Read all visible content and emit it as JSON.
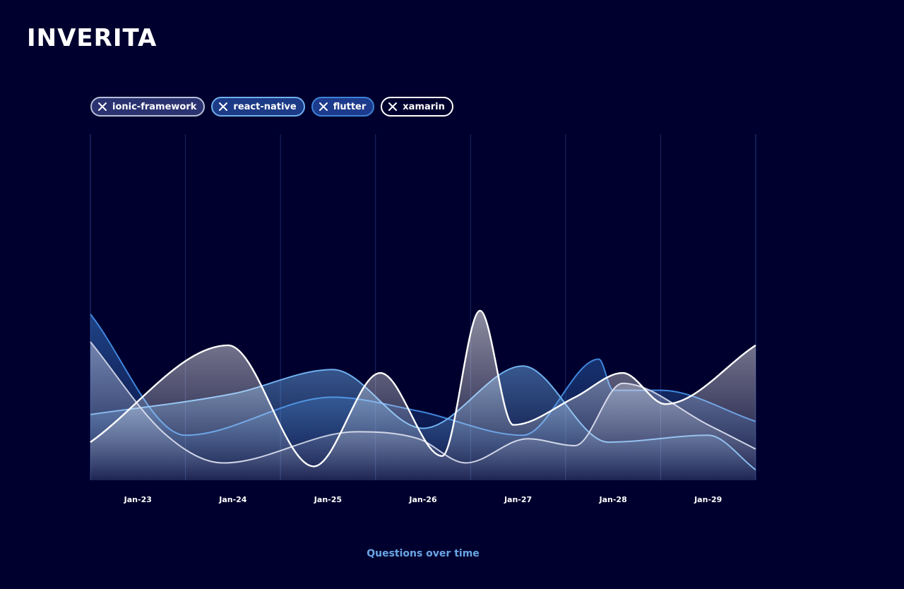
{
  "logo": {
    "text": "INVERITA"
  },
  "filters": [
    {
      "label": "ionic-framework",
      "color": "#b8bfd8",
      "bg": "#2a3270"
    },
    {
      "label": "react-native",
      "color": "#6fb0ee",
      "bg": "#1c3a86"
    },
    {
      "label": "flutter",
      "color": "#3e82d8",
      "bg": "#1d3b8c"
    },
    {
      "label": "xamarin",
      "color": "#ffffff",
      "bg": "#00002e"
    }
  ],
  "chart_data": {
    "type": "area",
    "categories": [
      "Jan-23",
      "Jan-24",
      "Jan-25",
      "Jan-26",
      "Jan-27",
      "Jan-28",
      "Jan-29"
    ],
    "xlabel": "Questions over time",
    "ylim": [
      0,
      100
    ],
    "grid": true,
    "series": [
      {
        "name": "flutter",
        "color": "#3f86dc",
        "x": [
          0,
          1,
          2.55,
          3.45,
          4.55,
          5.35,
          5.5,
          6,
          7
        ],
        "values": [
          48,
          13,
          24,
          20,
          13,
          35,
          26,
          26,
          17
        ]
      },
      {
        "name": "react-native",
        "color": "#6fb0ee",
        "x": [
          0,
          1.5,
          2.55,
          3.5,
          4.55,
          5.45,
          6.5,
          7
        ],
        "values": [
          19,
          25,
          32,
          15,
          33,
          11,
          13,
          3
        ]
      },
      {
        "name": "ionic-framework",
        "color": "#c8cde2",
        "x": [
          0,
          0.8,
          1.4,
          2.8,
          3.45,
          3.95,
          4.6,
          5.1,
          5.6,
          6.5,
          7
        ],
        "values": [
          40,
          13,
          5,
          14,
          12,
          5,
          12,
          10,
          28,
          16,
          9
        ]
      },
      {
        "name": "xamarin",
        "color": "#ffffff",
        "x": [
          0,
          1.45,
          2.35,
          3.05,
          3.7,
          4.1,
          4.45,
          5.1,
          5.6,
          6.05,
          7
        ],
        "values": [
          11,
          39,
          4,
          31,
          7,
          49,
          16,
          24,
          31,
          22,
          39
        ]
      }
    ]
  },
  "caption": "Questions over time"
}
